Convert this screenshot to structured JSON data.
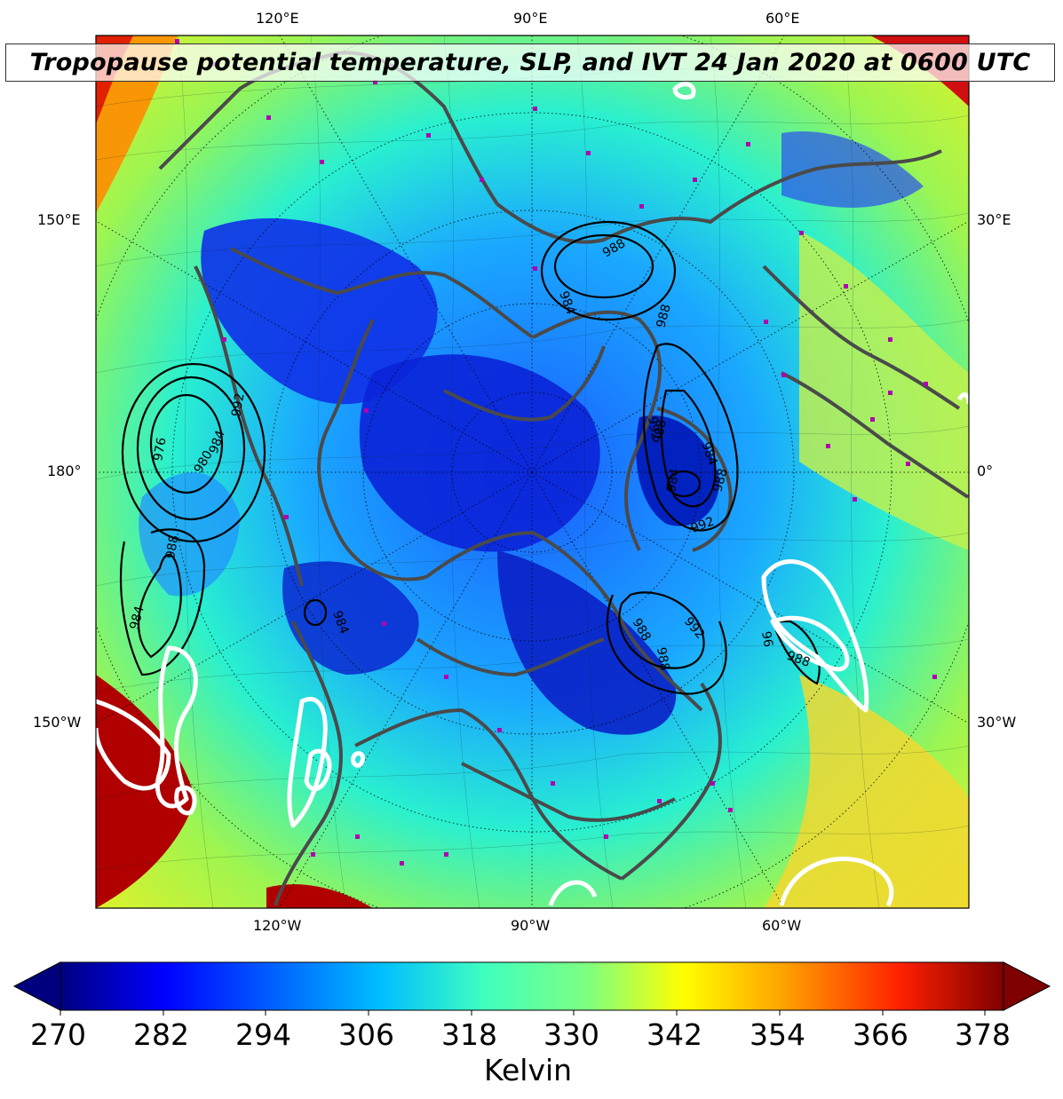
{
  "title": "Tropopause potential temperature, SLP, and IVT 24 Jan 2020 at 0600 UTC",
  "longitude_labels": {
    "top": [
      "120°E",
      "90°E",
      "60°E"
    ],
    "bottom": [
      "120°W",
      "90°W",
      "60°W"
    ],
    "left": [
      "150°E",
      "180°",
      "150°W"
    ],
    "right": [
      "30°E",
      "0°",
      "30°W"
    ]
  },
  "slp_contour_labels": [
    "976",
    "980",
    "984",
    "988",
    "992",
    "984",
    "988",
    "984",
    "988",
    "992",
    "988",
    "984",
    "988",
    "992",
    "984",
    "988",
    "992",
    "988",
    "984",
    "96",
    "988"
  ],
  "colorbar": {
    "ticks": [
      "270",
      "282",
      "294",
      "306",
      "318",
      "330",
      "342",
      "354",
      "366",
      "378"
    ],
    "label": "Kelvin",
    "colormap": [
      "#00007f",
      "#0000ff",
      "#007fff",
      "#00ffff",
      "#7fff7f",
      "#ffff00",
      "#ff7f00",
      "#ff0000",
      "#7f0000"
    ],
    "extend": "both"
  },
  "colors": {
    "coastline": "#4a4a4a",
    "ivt_contour": "#ffffff",
    "slp_contour": "#000000",
    "station_marker": "#b000b0"
  }
}
